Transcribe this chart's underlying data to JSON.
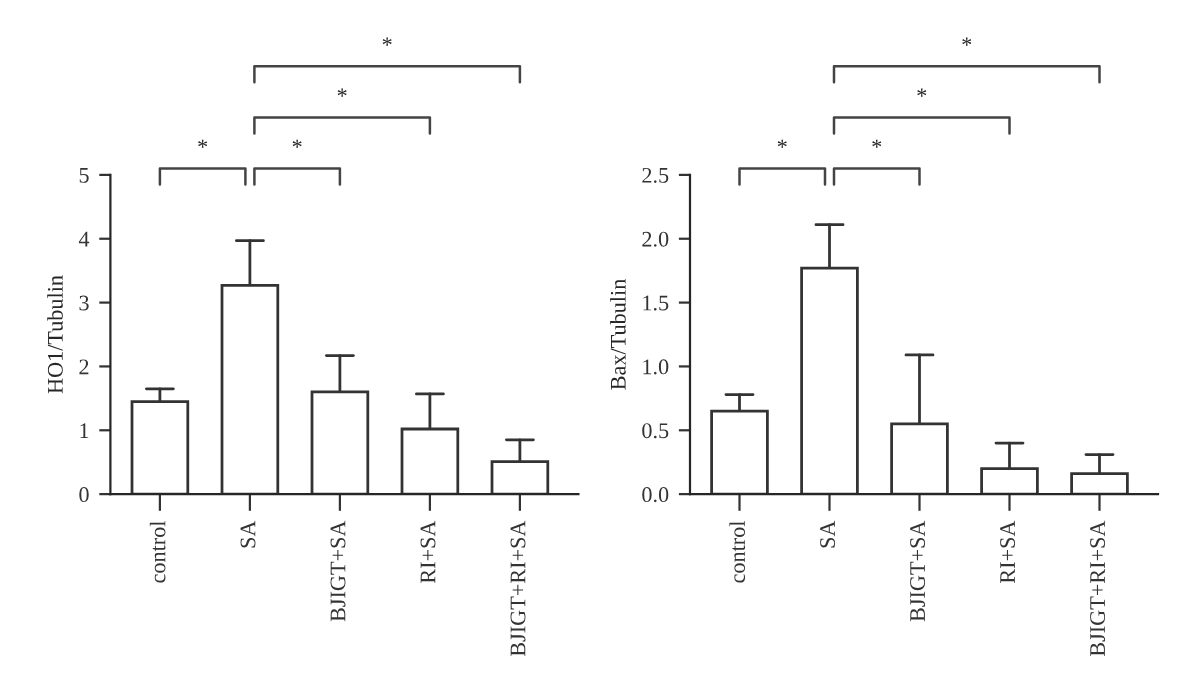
{
  "chart_data": [
    {
      "type": "bar",
      "ylabel": "HO1/Tubulin",
      "categories": [
        "control",
        "SA",
        "BJIGT+SA",
        "RI+SA",
        "BJIGT+RI+SA"
      ],
      "values": [
        1.45,
        3.27,
        1.6,
        1.02,
        0.51
      ],
      "color": "#ffffff",
      "errors": [
        [
          1.45,
          1.65
        ],
        [
          3.27,
          3.97
        ],
        [
          1.6,
          2.17
        ],
        [
          1.02,
          1.57
        ],
        [
          0.51,
          0.85
        ]
      ],
      "ylim": [
        0,
        5
      ],
      "yticks": [
        0,
        1,
        2,
        3,
        4,
        5
      ],
      "grid": false,
      "legend": false,
      "annotations": [
        "*",
        "*",
        "*",
        "*"
      ]
    },
    {
      "type": "bar",
      "ylabel": "Bax/Tubulin",
      "categories": [
        "control",
        "SA",
        "BJIGT+SA",
        "RI+SA",
        "BJIGT+RI+SA"
      ],
      "values": [
        0.65,
        1.77,
        0.55,
        0.2,
        0.16
      ],
      "color": "#ffffff",
      "errors": [
        [
          0.65,
          0.78
        ],
        [
          1.77,
          2.11
        ],
        [
          0.55,
          1.09
        ],
        [
          0.2,
          0.4
        ],
        [
          0.16,
          0.31
        ]
      ],
      "ylim": [
        0,
        2.5
      ],
      "yticks": [
        {
          "value": 0,
          "label": "0.0"
        },
        {
          "value": 0.5,
          "label": "0.5"
        },
        {
          "value": 1,
          "label": "1.0"
        },
        {
          "value": 1.5,
          "label": "1.5"
        },
        {
          "value": 2,
          "label": "2.0"
        },
        {
          "value": 2.5,
          "label": "2.5"
        }
      ],
      "grid": false,
      "legend": false,
      "annotations": [
        "*",
        "*",
        "*",
        "*"
      ]
    }
  ]
}
